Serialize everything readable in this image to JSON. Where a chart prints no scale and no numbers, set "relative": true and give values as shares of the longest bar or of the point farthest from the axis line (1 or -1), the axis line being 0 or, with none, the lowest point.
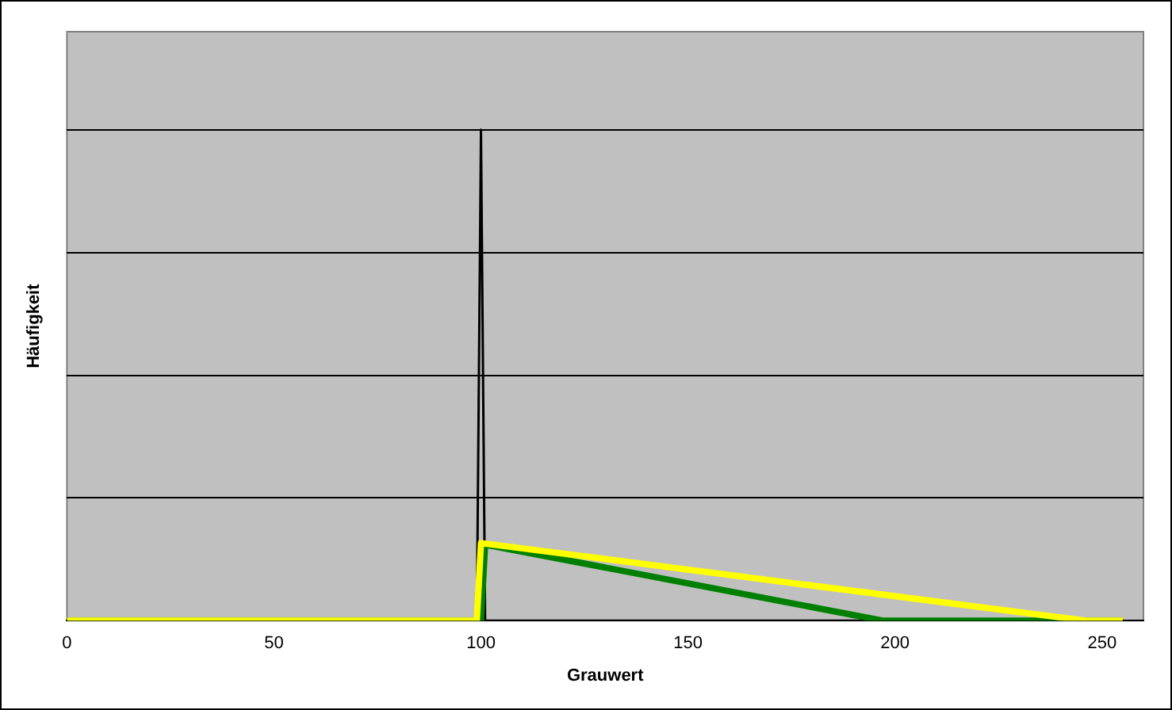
{
  "chart_data": {
    "type": "line",
    "relative": true,
    "xlabel": "Grauwert",
    "ylabel": "Häufigkeit",
    "xlim": [
      0,
      260
    ],
    "xticks": [
      0,
      50,
      100,
      150,
      200,
      250
    ],
    "grid": "y",
    "legend": false,
    "marker": "none",
    "line_style": "solid",
    "series": [
      {
        "color": "#000000",
        "x": [
          0,
          99,
          100,
          101,
          255
        ],
        "values": [
          0,
          0,
          1,
          0,
          0
        ]
      },
      {
        "color": "#008000",
        "x": [
          0,
          100,
          101,
          197,
          255
        ],
        "values": [
          0,
          0,
          0.155,
          0,
          0
        ]
      },
      {
        "color": "#ffff00",
        "x": [
          0,
          99,
          100,
          246,
          255
        ],
        "values": [
          0,
          0,
          0.158,
          0,
          0
        ]
      }
    ]
  }
}
